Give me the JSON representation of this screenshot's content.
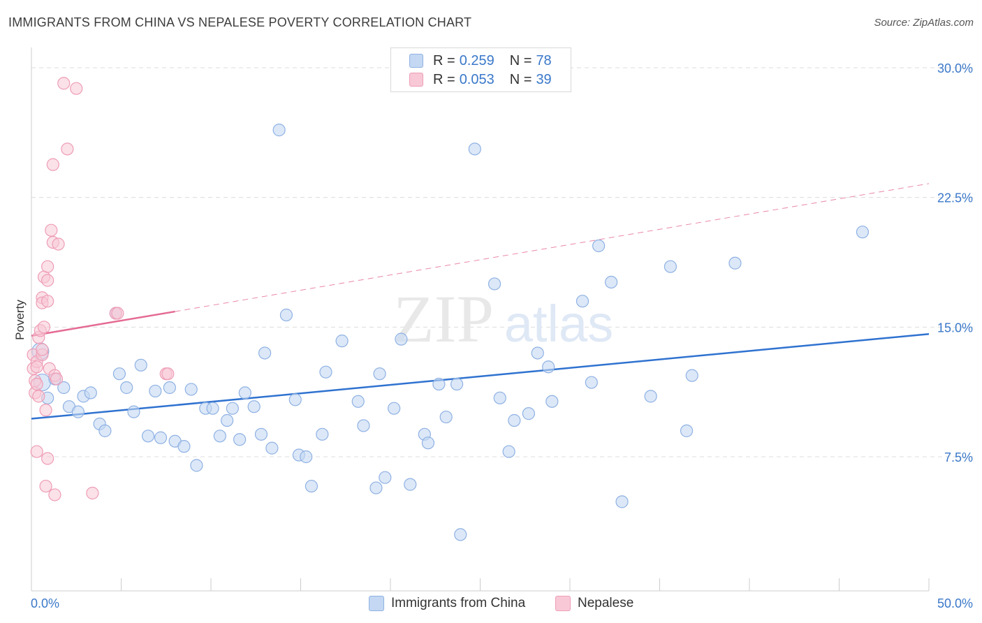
{
  "title": "IMMIGRANTS FROM CHINA VS NEPALESE POVERTY CORRELATION CHART",
  "source": "Source: ZipAtlas.com",
  "watermark": {
    "zip": "ZIP",
    "atlas": "atlas"
  },
  "legend": {
    "r_label": "R =",
    "n_label": "N =",
    "items": [
      {
        "r": "0.259",
        "n": "78"
      },
      {
        "r": "0.053",
        "n": "39"
      }
    ]
  },
  "colors": {
    "china_fill": "#c4d8f3",
    "china_stroke": "#8fb1e3",
    "china_line": "#2f72d0",
    "nepal_fill": "#f8c8d6",
    "nepal_stroke": "#ee9db6",
    "nepal_line": "#e46a92",
    "tick_label": "#3a78c9"
  },
  "chart_data": {
    "type": "scatter",
    "xlabel": "",
    "ylabel": "Poverty",
    "xlim": [
      0,
      50
    ],
    "ylim": [
      0,
      31
    ],
    "x_tick_labels": [
      "0.0%",
      "50.0%"
    ],
    "y_ticks": [
      7.5,
      15.0,
      22.5,
      30.0
    ],
    "y_tick_labels": [
      "7.5%",
      "15.0%",
      "22.5%",
      "30.0%"
    ],
    "grid": true,
    "legend_position": "bottom",
    "series": [
      {
        "name": "Immigrants from China",
        "trend": {
          "x": [
            0,
            50
          ],
          "y": [
            9.7,
            14.6
          ],
          "style": "solid"
        },
        "points": [
          {
            "x": 0.5,
            "y": 13.6,
            "large": true
          },
          {
            "x": 0.6,
            "y": 11.8,
            "large": true
          },
          {
            "x": 0.9,
            "y": 10.9
          },
          {
            "x": 1.3,
            "y": 12.0
          },
          {
            "x": 1.8,
            "y": 11.5
          },
          {
            "x": 2.1,
            "y": 10.4
          },
          {
            "x": 2.6,
            "y": 10.1
          },
          {
            "x": 2.9,
            "y": 11.0
          },
          {
            "x": 3.3,
            "y": 11.2
          },
          {
            "x": 3.8,
            "y": 9.4
          },
          {
            "x": 4.1,
            "y": 9.0
          },
          {
            "x": 4.7,
            "y": 15.8
          },
          {
            "x": 4.9,
            "y": 12.3
          },
          {
            "x": 5.3,
            "y": 11.5
          },
          {
            "x": 5.7,
            "y": 10.1
          },
          {
            "x": 6.1,
            "y": 12.8
          },
          {
            "x": 6.5,
            "y": 8.7
          },
          {
            "x": 6.9,
            "y": 11.3
          },
          {
            "x": 7.2,
            "y": 8.6
          },
          {
            "x": 7.7,
            "y": 11.5
          },
          {
            "x": 8.0,
            "y": 8.4
          },
          {
            "x": 8.5,
            "y": 8.1
          },
          {
            "x": 8.9,
            "y": 11.4
          },
          {
            "x": 9.2,
            "y": 7.0
          },
          {
            "x": 9.7,
            "y": 10.3
          },
          {
            "x": 10.1,
            "y": 10.3
          },
          {
            "x": 10.5,
            "y": 8.7
          },
          {
            "x": 10.9,
            "y": 9.6
          },
          {
            "x": 11.2,
            "y": 10.3
          },
          {
            "x": 11.6,
            "y": 8.5
          },
          {
            "x": 11.9,
            "y": 11.2
          },
          {
            "x": 12.4,
            "y": 10.4
          },
          {
            "x": 12.8,
            "y": 8.8
          },
          {
            "x": 13.0,
            "y": 13.5
          },
          {
            "x": 13.4,
            "y": 8.0
          },
          {
            "x": 13.8,
            "y": 26.4
          },
          {
            "x": 14.2,
            "y": 15.7
          },
          {
            "x": 14.7,
            "y": 10.8
          },
          {
            "x": 14.9,
            "y": 7.6
          },
          {
            "x": 15.3,
            "y": 7.5
          },
          {
            "x": 15.6,
            "y": 5.8
          },
          {
            "x": 16.2,
            "y": 8.8
          },
          {
            "x": 16.4,
            "y": 12.4
          },
          {
            "x": 17.3,
            "y": 14.2
          },
          {
            "x": 18.2,
            "y": 10.7
          },
          {
            "x": 18.5,
            "y": 9.3
          },
          {
            "x": 19.2,
            "y": 5.7
          },
          {
            "x": 19.4,
            "y": 12.3
          },
          {
            "x": 19.7,
            "y": 6.3
          },
          {
            "x": 20.2,
            "y": 10.3
          },
          {
            "x": 20.6,
            "y": 14.3
          },
          {
            "x": 21.1,
            "y": 5.9
          },
          {
            "x": 21.9,
            "y": 8.8
          },
          {
            "x": 22.1,
            "y": 8.3
          },
          {
            "x": 22.7,
            "y": 11.7
          },
          {
            "x": 23.1,
            "y": 9.8
          },
          {
            "x": 23.7,
            "y": 11.7
          },
          {
            "x": 23.9,
            "y": 3.0
          },
          {
            "x": 24.7,
            "y": 25.3
          },
          {
            "x": 25.8,
            "y": 17.5
          },
          {
            "x": 26.1,
            "y": 10.9
          },
          {
            "x": 26.6,
            "y": 7.8
          },
          {
            "x": 26.9,
            "y": 9.6
          },
          {
            "x": 27.7,
            "y": 10.0
          },
          {
            "x": 28.2,
            "y": 13.5
          },
          {
            "x": 28.8,
            "y": 12.7
          },
          {
            "x": 29.0,
            "y": 10.7
          },
          {
            "x": 30.7,
            "y": 16.5
          },
          {
            "x": 31.2,
            "y": 11.8
          },
          {
            "x": 31.6,
            "y": 19.7
          },
          {
            "x": 32.3,
            "y": 17.6
          },
          {
            "x": 32.9,
            "y": 4.9
          },
          {
            "x": 34.5,
            "y": 11.0
          },
          {
            "x": 35.6,
            "y": 18.5
          },
          {
            "x": 36.5,
            "y": 9.0
          },
          {
            "x": 36.8,
            "y": 12.2
          },
          {
            "x": 39.2,
            "y": 18.7
          },
          {
            "x": 46.3,
            "y": 20.5
          }
        ]
      },
      {
        "name": "Nepalese",
        "trend": {
          "x": [
            0,
            8
          ],
          "y": [
            14.5,
            15.9
          ],
          "style": "solid",
          "extension": {
            "x": [
              8,
              50
            ],
            "y": [
              15.9,
              23.3
            ],
            "style": "dashed"
          }
        },
        "points": [
          {
            "x": 0.1,
            "y": 13.4
          },
          {
            "x": 0.1,
            "y": 12.6
          },
          {
            "x": 0.2,
            "y": 11.9
          },
          {
            "x": 0.2,
            "y": 11.2
          },
          {
            "x": 0.3,
            "y": 13.0
          },
          {
            "x": 0.3,
            "y": 12.7
          },
          {
            "x": 0.3,
            "y": 11.7
          },
          {
            "x": 0.4,
            "y": 11.0
          },
          {
            "x": 0.3,
            "y": 7.8
          },
          {
            "x": 0.4,
            "y": 14.4
          },
          {
            "x": 0.5,
            "y": 14.8
          },
          {
            "x": 0.6,
            "y": 13.4
          },
          {
            "x": 0.6,
            "y": 13.7
          },
          {
            "x": 0.6,
            "y": 16.7
          },
          {
            "x": 0.6,
            "y": 16.4
          },
          {
            "x": 0.7,
            "y": 15.0
          },
          {
            "x": 0.7,
            "y": 17.9
          },
          {
            "x": 0.8,
            "y": 10.2
          },
          {
            "x": 0.8,
            "y": 5.8
          },
          {
            "x": 0.9,
            "y": 7.4
          },
          {
            "x": 0.9,
            "y": 16.5
          },
          {
            "x": 0.9,
            "y": 18.5
          },
          {
            "x": 0.9,
            "y": 17.7
          },
          {
            "x": 1.0,
            "y": 12.6
          },
          {
            "x": 1.1,
            "y": 20.6
          },
          {
            "x": 1.2,
            "y": 24.4
          },
          {
            "x": 1.2,
            "y": 19.9
          },
          {
            "x": 1.3,
            "y": 5.3
          },
          {
            "x": 1.3,
            "y": 12.2
          },
          {
            "x": 1.4,
            "y": 12.0
          },
          {
            "x": 1.5,
            "y": 19.8
          },
          {
            "x": 1.8,
            "y": 29.1
          },
          {
            "x": 2.0,
            "y": 25.3
          },
          {
            "x": 2.5,
            "y": 28.8
          },
          {
            "x": 3.4,
            "y": 5.4
          },
          {
            "x": 4.7,
            "y": 15.8
          },
          {
            "x": 4.8,
            "y": 15.8
          },
          {
            "x": 7.5,
            "y": 12.3
          },
          {
            "x": 7.6,
            "y": 12.3
          }
        ]
      }
    ]
  }
}
